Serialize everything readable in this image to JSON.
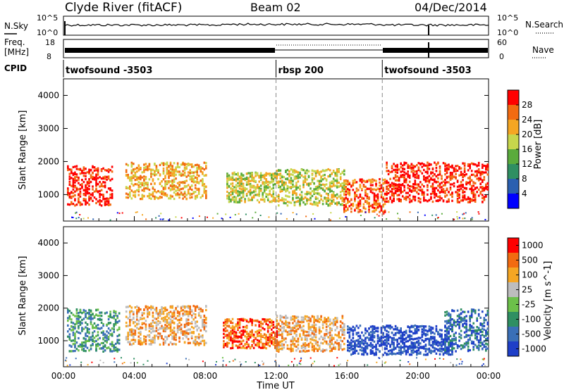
{
  "header": {
    "station": "Clyde River (fitACF)",
    "beam": "Beam 02",
    "date": "04/Dec/2014"
  },
  "strip_labels": {
    "nsky": "N.Sky",
    "freq_line1": "Freq.",
    "freq_line2": "[MHz]",
    "cpid": "CPID",
    "nsearch": "N.Search",
    "nave": "Nave",
    "nsky_top": "10^5",
    "nsky_bottom": "10^0",
    "nsearch_top": "10^5",
    "nsearch_bottom": "10^0",
    "freq_top": "18",
    "freq_bottom": "8",
    "nave_top": "60",
    "nave_bottom": "0"
  },
  "cpid_segments": [
    {
      "label": "twofsound -3503",
      "start_hour": 0,
      "end_hour": 12
    },
    {
      "label": "rbsp 200",
      "start_hour": 12,
      "end_hour": 18
    },
    {
      "label": "twofsound -3503",
      "start_hour": 18,
      "end_hour": 24
    }
  ],
  "chart_data": [
    {
      "type": "heatmap",
      "panel": "power",
      "ylabel": "Slant Range [km]",
      "colorbar_label": "Power [dB]",
      "ylim": [
        200,
        4500
      ],
      "yticks": [
        "1000",
        "2000",
        "3000",
        "4000"
      ],
      "colorbar_ticks": [
        "4",
        "8",
        "12",
        "16",
        "20",
        "24",
        "28"
      ],
      "colors": [
        "#0000ff",
        "#2a5fb0",
        "#2f8f62",
        "#5aab3c",
        "#c7d64c",
        "#f5a623",
        "#f26b11",
        "#ff0000"
      ],
      "regions": [
        {
          "start_hour": 0.2,
          "end_hour": 2.8,
          "range_min": 700,
          "range_max": 1900,
          "level": 7
        },
        {
          "start_hour": 3.5,
          "end_hour": 8.0,
          "range_min": 900,
          "range_max": 2000,
          "level": 5
        },
        {
          "start_hour": 9.2,
          "end_hour": 11.9,
          "range_min": 800,
          "range_max": 1700,
          "level": 4
        },
        {
          "start_hour": 12.0,
          "end_hour": 15.8,
          "range_min": 700,
          "range_max": 1800,
          "level": 4
        },
        {
          "start_hour": 15.8,
          "end_hour": 18.2,
          "range_min": 500,
          "range_max": 1500,
          "level": 6
        },
        {
          "start_hour": 18.2,
          "end_hour": 24.0,
          "range_min": 800,
          "range_max": 2000,
          "level": 7
        }
      ]
    },
    {
      "type": "heatmap",
      "panel": "velocity",
      "ylabel": "Slant Range [km]",
      "colorbar_label": "Velocity [m s^-1]",
      "ylim": [
        200,
        4500
      ],
      "yticks": [
        "1000",
        "2000",
        "3000",
        "4000"
      ],
      "colorbar_ticks": [
        "1000",
        "500",
        "100",
        "25",
        "-25",
        "-100",
        "-500",
        "-1000"
      ],
      "colors": [
        "#1e3fc8",
        "#3a6fb7",
        "#2f8f62",
        "#6cc04a",
        "#bdbdbd",
        "#f5a623",
        "#f26b11",
        "#ff0000"
      ],
      "regions": [
        {
          "start_hour": 0.2,
          "end_hour": 3.2,
          "range_min": 700,
          "range_max": 2000,
          "level": 2
        },
        {
          "start_hour": 3.5,
          "end_hour": 8.0,
          "range_min": 900,
          "range_max": 2100,
          "level": 5
        },
        {
          "start_hour": 9.0,
          "end_hour": 12.0,
          "range_min": 800,
          "range_max": 1700,
          "level": 6
        },
        {
          "start_hour": 12.0,
          "end_hour": 15.8,
          "range_min": 700,
          "range_max": 1800,
          "level": 5
        },
        {
          "start_hour": 16.0,
          "end_hour": 22.0,
          "range_min": 600,
          "range_max": 1500,
          "level": 0
        },
        {
          "start_hour": 21.5,
          "end_hour": 24.0,
          "range_min": 700,
          "range_max": 2000,
          "level": 1
        }
      ]
    }
  ],
  "xaxis": {
    "label": "Time UT",
    "ticks": [
      "00:00",
      "04:00",
      "08:00",
      "12:00",
      "16:00",
      "20:00",
      "00:00"
    ],
    "minor_ticks": true,
    "dashed_lines_at_hours": [
      12,
      18
    ]
  }
}
